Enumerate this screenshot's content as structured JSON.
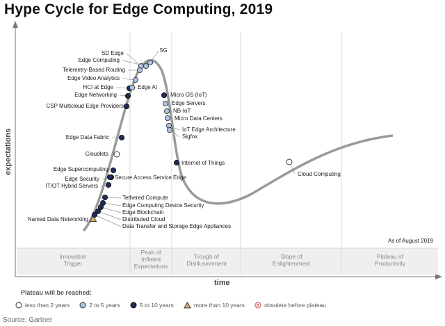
{
  "title": "Hype Cycle for Edge Computing, 2019",
  "axis": {
    "y": "expectations",
    "x": "time"
  },
  "as_of": "As of August 2019",
  "phases": [
    [
      "Innovation",
      "Trigger"
    ],
    [
      "Peak of",
      "Inflated",
      "Expectations"
    ],
    [
      "Trough of",
      "Disillusionment"
    ],
    [
      "Slope of",
      "Enlightenment"
    ],
    [
      "Plateau of",
      "Productivity"
    ]
  ],
  "legend": {
    "title": "Plateau will be reached:",
    "items": [
      {
        "label": "less than 2 years",
        "icon": "open-circle-icon",
        "color": "#ffffff"
      },
      {
        "label": "2 to 5 years",
        "icon": "light-blue-circle-icon",
        "color": "#a9c4e4"
      },
      {
        "label": "5 to 10 years",
        "icon": "dark-navy-circle-icon",
        "color": "#1f2d5a"
      },
      {
        "label": "more than 10 years",
        "icon": "triangle-icon",
        "color": "#d9b36a"
      },
      {
        "label": "obsolete before plateau",
        "icon": "circle-x-icon",
        "color": "#e06666"
      }
    ]
  },
  "source": "Source: Gartner",
  "technologies": [
    {
      "label": "SD Edge",
      "marker": "light-blue"
    },
    {
      "label": "5G",
      "marker": "light-blue"
    },
    {
      "label": "Edge Computing",
      "marker": "light-blue"
    },
    {
      "label": "Telemetry-Based Routing",
      "marker": "light-blue"
    },
    {
      "label": "Edge Video Analytics",
      "marker": "light-blue"
    },
    {
      "label": "HCI at Edge",
      "marker": "dark-navy"
    },
    {
      "label": "Edge AI",
      "marker": "light-blue"
    },
    {
      "label": "Edge Networking",
      "marker": "dark-navy"
    },
    {
      "label": "CSP Multicloud Edge Providers",
      "marker": "dark-navy"
    },
    {
      "label": "Micro OS (IoT)",
      "marker": "dark-navy"
    },
    {
      "label": "Edge Servers",
      "marker": "light-blue"
    },
    {
      "label": "NB-IoT",
      "marker": "light-blue"
    },
    {
      "label": "Micro Data Centers",
      "marker": "light-blue"
    },
    {
      "label": "IoT Edge Architecture",
      "marker": "light-blue"
    },
    {
      "label": "Sigfox",
      "marker": "light-blue"
    },
    {
      "label": "Edge Data Fabric",
      "marker": "dark-navy"
    },
    {
      "label": "Cloudlets",
      "marker": "open"
    },
    {
      "label": "Internet of Things",
      "marker": "dark-navy"
    },
    {
      "label": "Cloud Computing",
      "marker": "open"
    },
    {
      "label": "Edge Supercomputing",
      "marker": "dark-navy"
    },
    {
      "label": "Secure Access Service Edge",
      "marker": "dark-navy"
    },
    {
      "label": "Edge Security",
      "marker": "dark-navy"
    },
    {
      "label": "IT/OT Hybrid Servers",
      "marker": "dark-navy"
    },
    {
      "label": "Tethered Compute",
      "marker": "dark-navy"
    },
    {
      "label": "Edge Computing Device Security",
      "marker": "dark-navy"
    },
    {
      "label": "Edge Blockchain",
      "marker": "dark-navy"
    },
    {
      "label": "Distributed Cloud",
      "marker": "dark-navy"
    },
    {
      "label": "Named Data Networking",
      "marker": "triangle"
    },
    {
      "label": "Data Transfer and Storage Edge Appliances",
      "marker": "dark-navy"
    }
  ]
}
